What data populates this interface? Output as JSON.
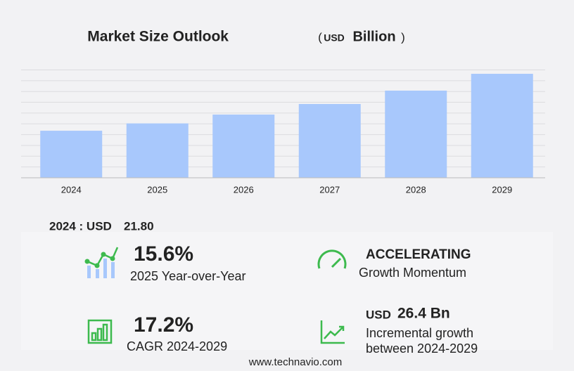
{
  "chart_data": {
    "type": "bar",
    "title": "Market Size Outlook",
    "unit": [
      "(",
      "USD",
      "Billion",
      ")"
    ],
    "categories": [
      "2024",
      "2025",
      "2026",
      "2027",
      "2028",
      "2029"
    ],
    "values": [
      21.8,
      25.2,
      29.3,
      34.2,
      40.4,
      48.2
    ],
    "color": "#a8c8fc",
    "ylim": [
      0,
      50
    ],
    "yticks": [
      0,
      5,
      10,
      15,
      20,
      25,
      30,
      35,
      40,
      45,
      50
    ],
    "grid": true
  },
  "summary": {
    "label": "2024 : USD",
    "value": "21.80"
  },
  "stats": [
    {
      "value": "15.6%",
      "label": "2025 Year-over-Year"
    },
    {
      "value": "ACCELERATING",
      "label": "Growth Momentum"
    },
    {
      "value": "17.2%",
      "label": "CAGR 2024-2029"
    },
    {
      "currency": "USD",
      "value": "26.4 Bn",
      "label": "Incremental growth",
      "label2": "between 2024-2029"
    }
  ],
  "footer": "www.technavio.com"
}
